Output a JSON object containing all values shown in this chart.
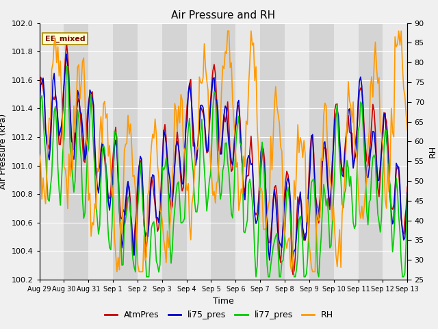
{
  "title": "Air Pressure and RH",
  "xlabel": "Time",
  "ylabel_left": "Air Pressure (kPa)",
  "ylabel_right": "RH",
  "annotation": "EE_mixed",
  "ylim_left": [
    100.2,
    102.0
  ],
  "ylim_right": [
    25,
    90
  ],
  "yticks_left": [
    100.2,
    100.4,
    100.6,
    100.8,
    101.0,
    101.2,
    101.4,
    101.6,
    101.8,
    102.0
  ],
  "yticks_right": [
    25,
    30,
    35,
    40,
    45,
    50,
    55,
    60,
    65,
    70,
    75,
    80,
    85,
    90
  ],
  "xtick_labels": [
    "Aug 29",
    "Aug 30",
    "Aug 31",
    "Sep 1",
    "Sep 2",
    "Sep 3",
    "Sep 4",
    "Sep 5",
    "Sep 6",
    "Sep 7",
    "Sep 8",
    "Sep 9",
    "Sep 10",
    "Sep 11",
    "Sep 12",
    "Sep 13"
  ],
  "colors": {
    "AtmPres": "#cc0000",
    "li75_pres": "#0000cc",
    "li77_pres": "#00cc00",
    "RH": "#ff9900"
  },
  "bg_color": "#f0f0f0",
  "plot_bg": "#e0e0e0",
  "band_light": "#e8e8e8",
  "band_dark": "#d4d4d4",
  "hgrid_color": "#ffffff",
  "title_fontsize": 11,
  "axis_fontsize": 9,
  "tick_fontsize": 8,
  "legend_fontsize": 9,
  "linewidth": 1.2
}
